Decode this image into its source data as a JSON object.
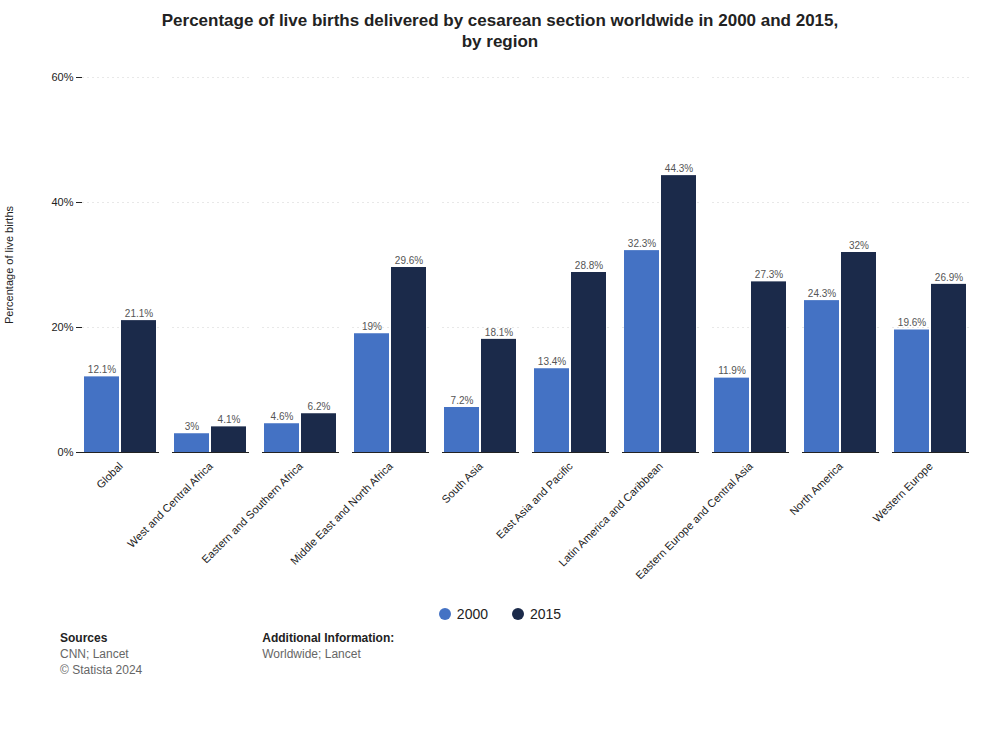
{
  "chart_data": {
    "type": "bar",
    "title": "Percentage of live births delivered by cesarean section worldwide in 2000 and 2015,\nby region",
    "ylabel": "Percentage of live births",
    "categories": [
      "Global",
      "West and Central Africa",
      "Eastern and Southern Africa",
      "Middle East and North Africa",
      "South Asia",
      "East Asia and Pacific",
      "Latin America and Caribbean",
      "Eastern Europe and Central Asia",
      "North America",
      "Western Europe"
    ],
    "series": [
      {
        "name": "2000",
        "color": "#4472C4",
        "values": [
          12.1,
          3.0,
          4.6,
          19.0,
          7.2,
          13.4,
          32.3,
          11.9,
          24.3,
          19.6
        ],
        "value_labels": [
          "12.1%",
          "3%",
          "4.6%",
          "19%",
          "7.2%",
          "13.4%",
          "32.3%",
          "11.9%",
          "24.3%",
          "19.6%"
        ]
      },
      {
        "name": "2015",
        "color": "#1B2A4A",
        "values": [
          21.1,
          4.1,
          6.2,
          29.6,
          18.1,
          28.8,
          44.3,
          27.3,
          32.0,
          26.9
        ],
        "value_labels": [
          "21.1%",
          "4.1%",
          "6.2%",
          "29.6%",
          "18.1%",
          "28.8%",
          "44.3%",
          "27.3%",
          "32%",
          "26.9%"
        ]
      }
    ],
    "ylim": [
      0,
      60
    ],
    "yticks": [
      {
        "value": 0,
        "label": "0%"
      },
      {
        "value": 20,
        "label": "20%"
      },
      {
        "value": 40,
        "label": "40%"
      },
      {
        "value": 60,
        "label": "60%"
      }
    ],
    "grid": true,
    "legend": "bottom",
    "data_labels": true,
    "annotations": [
      [
        "Sources",
        "CNN; Lancet",
        "© Statista 2024"
      ],
      [
        "Additional Information:",
        "Worldwide; Lancet"
      ]
    ]
  }
}
